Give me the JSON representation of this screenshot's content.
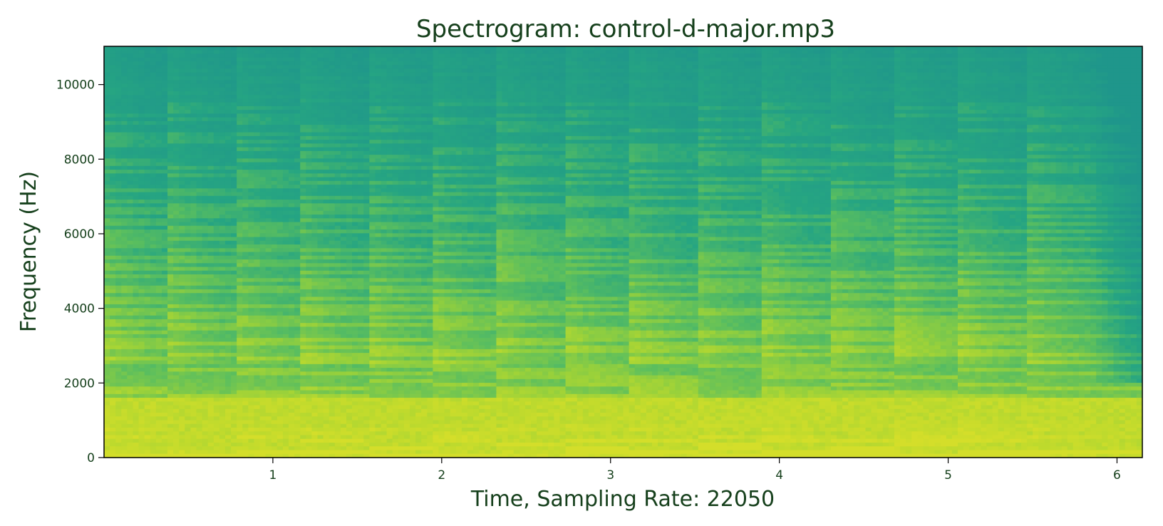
{
  "chart_data": {
    "type": "heatmap",
    "title": "Spectrogram: control-d-major.mp3",
    "xlabel": "Time, Sampling Rate: 22050",
    "ylabel": "Frequency (Hz)",
    "xlim": [
      0,
      6.15
    ],
    "ylim": [
      0,
      11025
    ],
    "x_ticks": [
      1,
      2,
      3,
      4,
      5,
      6
    ],
    "x_tick_labels": [
      "1",
      "2",
      "3",
      "4",
      "5",
      "6"
    ],
    "y_ticks": [
      0,
      2000,
      4000,
      6000,
      8000,
      10000
    ],
    "y_tick_labels": [
      "0",
      "2000",
      "4000",
      "6000",
      "8000",
      "10000"
    ],
    "note_onsets_s": [
      0.0,
      0.39,
      0.78,
      1.17,
      1.56,
      1.95,
      2.34,
      2.73,
      3.12,
      3.51,
      3.9,
      4.29,
      4.68,
      5.07,
      5.46
    ],
    "colormap": "viridis",
    "grid": false,
    "colors": {
      "high_energy": "#d2dd2a",
      "mid_energy": "#7fc04a",
      "low_energy": "#21a08a",
      "text": "#16401c"
    }
  }
}
